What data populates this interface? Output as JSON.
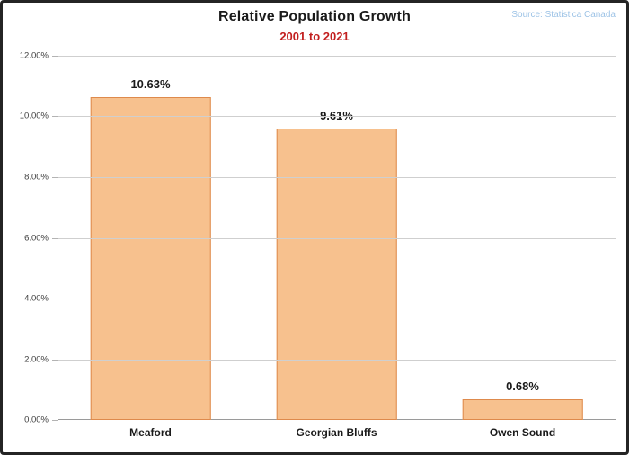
{
  "header": {
    "title": "Relative Population Growth",
    "subtitle": "2001 to 2021",
    "source": "Source: Statistica Canada"
  },
  "chart_data": {
    "type": "bar",
    "title": "Relative Population Growth",
    "subtitle": "2001 to 2021",
    "source": "Source: Statistica Canada",
    "categories": [
      "Meaford",
      "Georgian Bluffs",
      "Owen Sound"
    ],
    "values": [
      10.63,
      9.61,
      0.68
    ],
    "value_labels": [
      "10.63%",
      "9.61%",
      "0.68%"
    ],
    "xlabel": "",
    "ylabel": "",
    "ylim": [
      0,
      12
    ],
    "grid": true,
    "legend": false,
    "yticks": [
      {
        "value": 0,
        "label": "0.00%"
      },
      {
        "value": 2,
        "label": "2.00%"
      },
      {
        "value": 4,
        "label": "4.00%"
      },
      {
        "value": 6,
        "label": "6.00%"
      },
      {
        "value": 8,
        "label": "8.00%"
      },
      {
        "value": 10,
        "label": "10.00%"
      },
      {
        "value": 12,
        "label": "12.00%"
      }
    ],
    "colors": {
      "bar_fill": "#F7C18E",
      "bar_border": "#DE8A4C",
      "gridline": "#CFCFCF",
      "axis": "#B3B3B3",
      "subtitle_red": "#C21F1F",
      "source_blue": "#9DC3E6"
    }
  }
}
